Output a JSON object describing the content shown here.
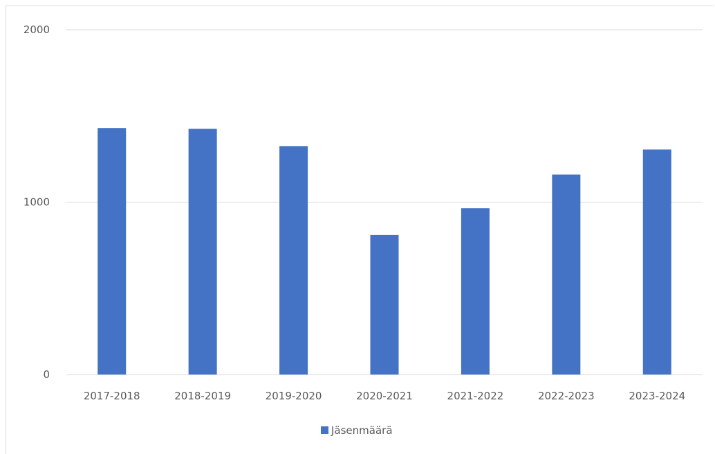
{
  "chart_data": {
    "type": "bar",
    "categories": [
      "2017-2018",
      "2018-2019",
      "2019-2020",
      "2020-2021",
      "2021-2022",
      "2022-2023",
      "2023-2024"
    ],
    "series": [
      {
        "name": "Jäsenmäärä",
        "values": [
          1430,
          1425,
          1325,
          810,
          965,
          1160,
          1305
        ],
        "color": "#4472C4"
      }
    ],
    "ylim": [
      0,
      2000
    ],
    "yticks": [
      "0",
      "1000",
      "2000"
    ],
    "grid": true,
    "legend": "bottom"
  }
}
